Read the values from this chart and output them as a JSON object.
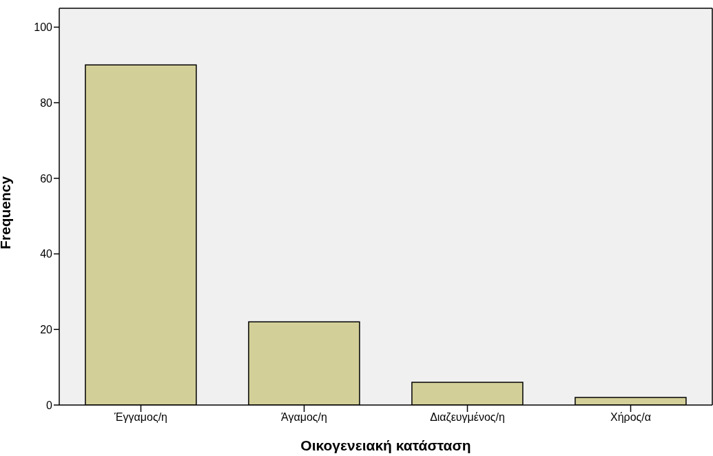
{
  "chart_data": {
    "type": "bar",
    "xlabel": "Οικογενειακή κατάσταση",
    "ylabel": "Frequency",
    "categories": [
      "Έγγαμος/η",
      "Άγαμος/η",
      "Διαζευγμένος/η",
      "Χήρος/α"
    ],
    "values": [
      90,
      22,
      6,
      2
    ],
    "color": "#d3cf98",
    "ylim": [
      0,
      105
    ],
    "yticks": [
      0,
      20,
      40,
      60,
      80,
      100
    ],
    "grid": false
  }
}
